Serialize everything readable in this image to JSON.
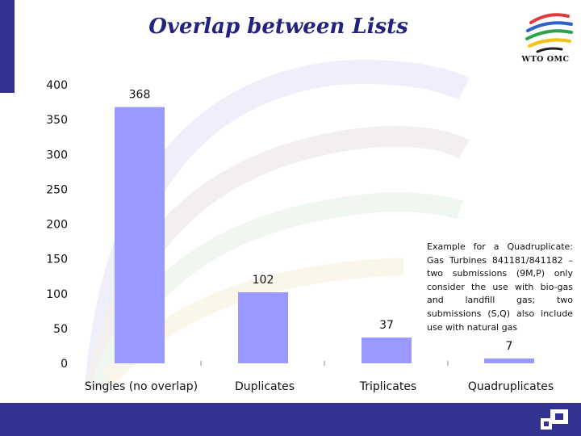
{
  "title": "Overlap between Lists",
  "logo_text": "WTO OMC",
  "note": "Example for a Quadruplicate: Gas Turbines 841181/841182 – two submissions (9M,P) only consider the use with bio-gas and landfill gas; two submissions (S,Q) also include use with natural gas",
  "colors": {
    "bar": "#9999ff",
    "brand": "#32328f",
    "title": "#23237e"
  },
  "chart_data": {
    "type": "bar",
    "categories": [
      "Singles (no overlap)",
      "Duplicates",
      "Triplicates",
      "Quadruplicates"
    ],
    "values": [
      368,
      102,
      37,
      7
    ],
    "data_labels": [
      "368",
      "102",
      "37",
      "7"
    ],
    "ylim": [
      0,
      400
    ],
    "yticks": [
      0,
      50,
      100,
      150,
      200,
      250,
      300,
      350,
      400
    ],
    "title": "",
    "xlabel": "",
    "ylabel": "",
    "grid": false
  }
}
